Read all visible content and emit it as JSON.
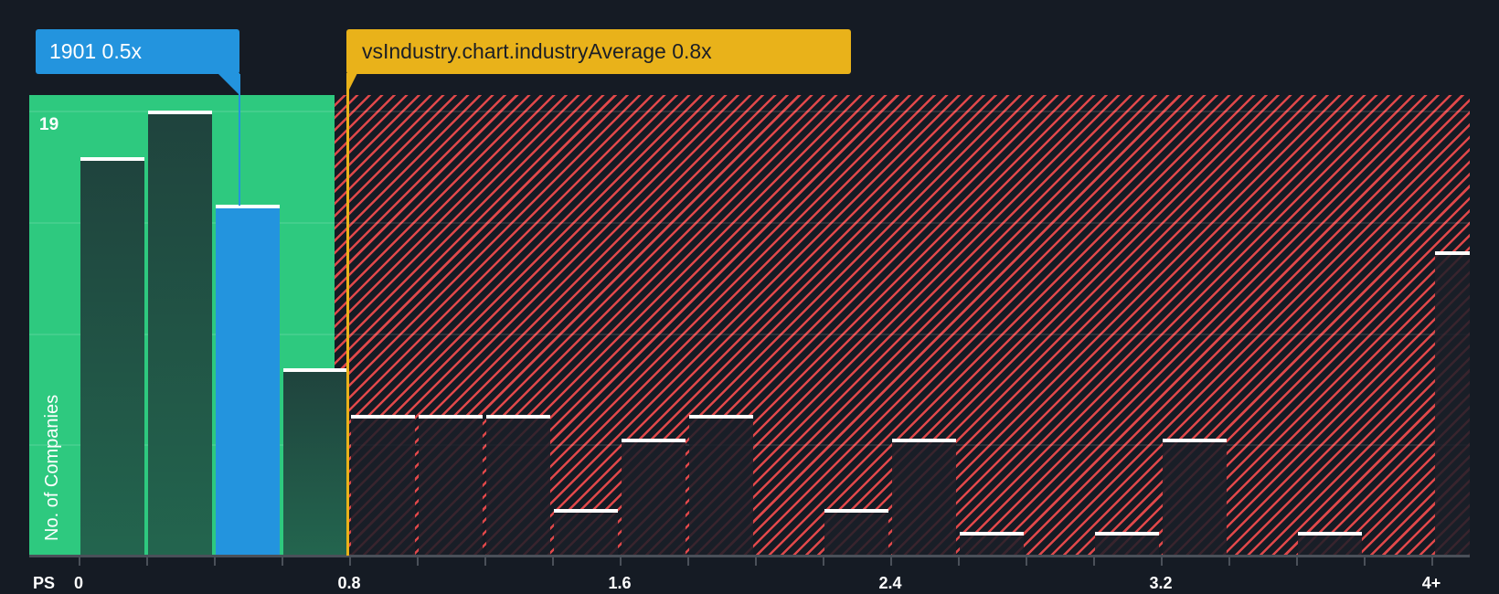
{
  "chart_data": {
    "type": "bar",
    "title": "",
    "xlabel": "PS",
    "ylabel": "No. of Companies",
    "ylim": [
      0,
      19
    ],
    "y_max_label": "19",
    "x_tick_labels": [
      "0",
      "0.8",
      "1.6",
      "2.4",
      "3.2",
      "4+"
    ],
    "categories": [
      "0-0.2",
      "0.2-0.4",
      "0.4-0.6",
      "0.6-0.8",
      "0.8-1.0",
      "1.0-1.2",
      "1.2-1.4",
      "1.4-1.6",
      "1.6-1.8",
      "1.8-2.0",
      "2.0-2.2",
      "2.2-2.4",
      "2.4-2.6",
      "2.6-2.8",
      "2.8-3.0",
      "3.0-3.2",
      "3.2-3.4",
      "3.4-3.6",
      "3.6-3.8",
      "3.8-4.0",
      "4+"
    ],
    "values": [
      17,
      19,
      15,
      8,
      6,
      6,
      6,
      2,
      5,
      6,
      0,
      2,
      5,
      1,
      0,
      1,
      5,
      0,
      1,
      0,
      13
    ],
    "highlight_bin": "0.4-0.6",
    "annotations": [
      {
        "label": "1901 0.5x",
        "x": 0.5,
        "color": "#2394de"
      },
      {
        "label": "vsIndustry.chart.industryAverage 0.8x",
        "x": 0.8,
        "color": "#e9b21a"
      }
    ],
    "regions": [
      {
        "from": 0,
        "to": 0.8,
        "color": "#2ec97f",
        "meaning": "below industry average"
      },
      {
        "from": 0.8,
        "to": "4+",
        "color": "#e0484a",
        "pattern": "hatched",
        "meaning": "above industry average"
      }
    ],
    "grid": true,
    "legend": null
  },
  "callouts": {
    "company": "1901 0.5x",
    "industry": "vsIndustry.chart.industryAverage 0.8x"
  },
  "axis": {
    "x_title": "PS",
    "y_title": "No. of Companies",
    "y_max": "19",
    "ticks": [
      "0",
      "0.8",
      "1.6",
      "2.4",
      "3.2",
      "4+"
    ]
  }
}
